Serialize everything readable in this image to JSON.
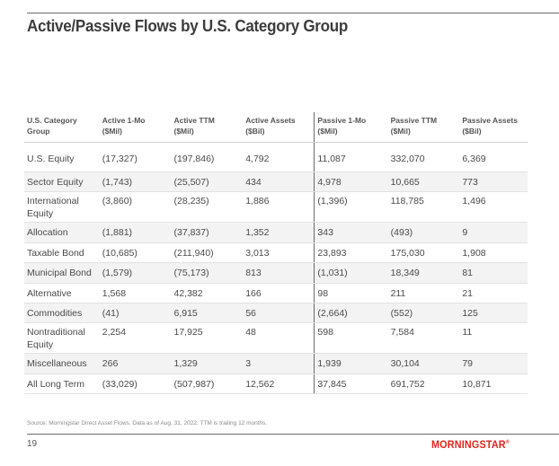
{
  "title": "Active/Passive Flows by U.S. Category Group",
  "table": {
    "headers": [
      [
        "U.S. Category",
        "Group"
      ],
      [
        "Active 1-Mo",
        "($Mil)"
      ],
      [
        "Active TTM",
        "($Mil)"
      ],
      [
        "Active Assets",
        "($Bil)"
      ],
      [
        "Passive 1-Mo",
        "($Mil)"
      ],
      [
        "Passive TTM",
        "($Mil)"
      ],
      [
        "Passive Assets",
        "($Bil)"
      ]
    ],
    "rows": [
      [
        "U.S. Equity",
        "(17,327)",
        "(197,846)",
        "4,792",
        "11,087",
        "332,070",
        "6,369"
      ],
      [
        "Sector Equity",
        "(1,743)",
        "(25,507)",
        "434",
        "4,978",
        "10,665",
        "773"
      ],
      [
        "International Equity",
        "(3,860)",
        "(28,235)",
        "1,886",
        "(1,396)",
        "118,785",
        "1,496"
      ],
      [
        "Allocation",
        "(1,881)",
        "(37,837)",
        "1,352",
        "343",
        "(493)",
        "9"
      ],
      [
        "Taxable Bond",
        "(10,685)",
        "(211,940)",
        "3,013",
        "23,893",
        "175,030",
        "1,908"
      ],
      [
        "Municipal Bond",
        "(1,579)",
        "(75,173)",
        "813",
        "(1,031)",
        "18,349",
        "81"
      ],
      [
        "Alternative",
        "1,568",
        "42,382",
        "166",
        "98",
        "211",
        "21"
      ],
      [
        "Commodities",
        "(41)",
        "6,915",
        "56",
        "(2,664)",
        "(552)",
        "125"
      ],
      [
        "Nontraditional Equity",
        "2,254",
        "17,925",
        "48",
        "598",
        "7,584",
        "11"
      ],
      [
        "Miscellaneous",
        "266",
        "1,329",
        "3",
        "1,939",
        "30,104",
        "79"
      ],
      [
        "All Long Term",
        "(33,029)",
        "(507,987)",
        "12,562",
        "37,845",
        "691,752",
        "10,871"
      ]
    ]
  },
  "source_note": "Source: Morningstar Direct Asset Flows. Data as of Aug. 31, 2022. TTM is trailing 12 months.",
  "page_number": "19",
  "logo_text": "MORNINGSTAR",
  "logo_mark": "®",
  "colors": {
    "brand": "#e1261c",
    "text": "#4a4a4a",
    "rule": "#6b6b6b",
    "row_alt": "#f3f3f3"
  }
}
